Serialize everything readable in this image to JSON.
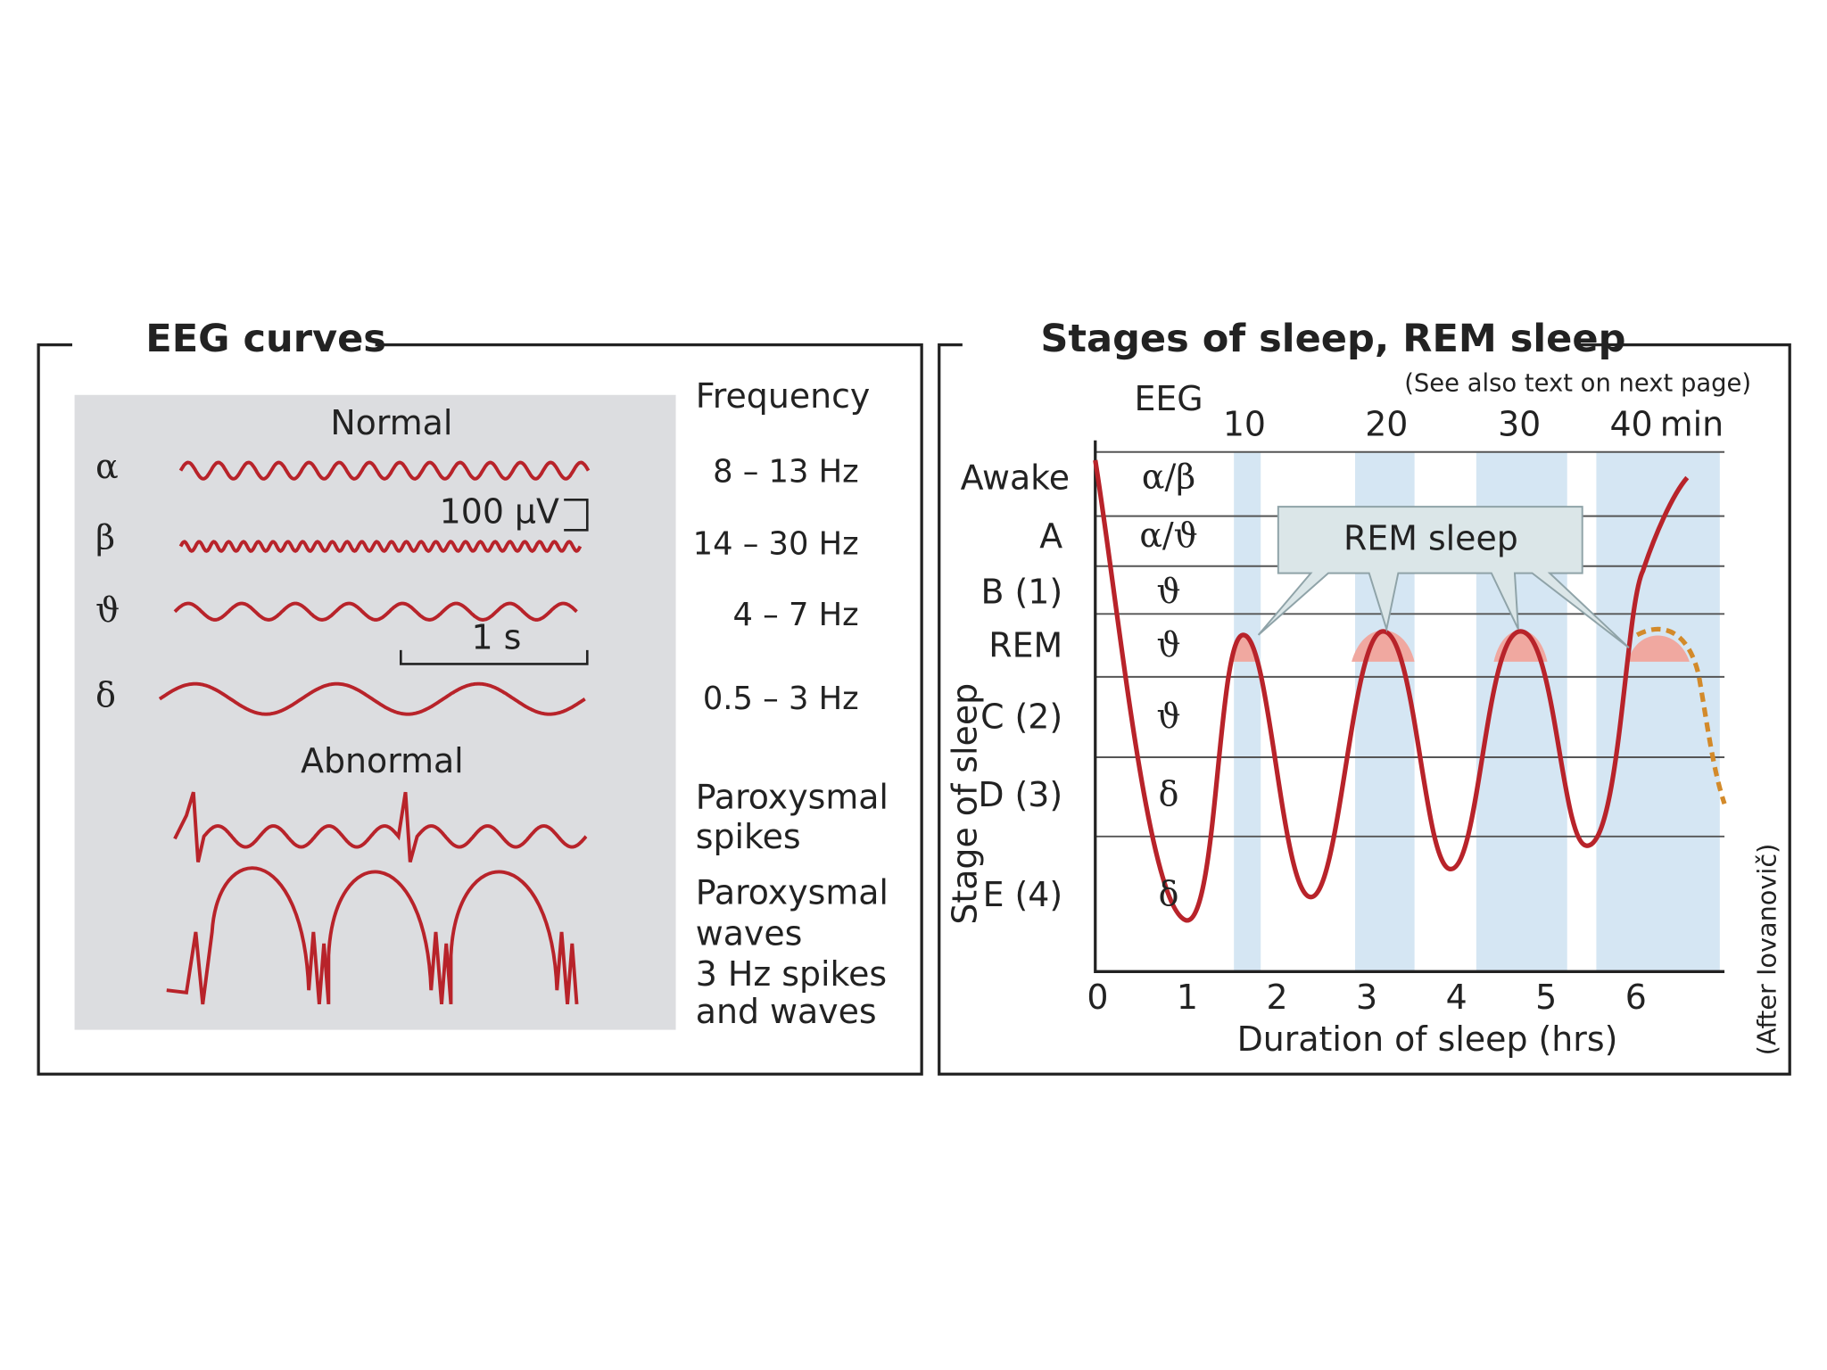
{
  "left_panel": {
    "title": "EEG curves",
    "normal_label": "Normal",
    "abnormal_label": "Abnormal",
    "frequency_header": "Frequency",
    "waves": [
      {
        "symbol": "α",
        "frequency": "8 – 13 Hz"
      },
      {
        "symbol": "β",
        "frequency": "14 – 30 Hz"
      },
      {
        "symbol": "ϑ",
        "frequency": "4 – 7 Hz"
      },
      {
        "symbol": "δ",
        "frequency": "0.5 – 3 Hz"
      }
    ],
    "amplitude_scale": "100 µV",
    "time_scale": "1 s",
    "abnormal": [
      [
        "Paroxysmal",
        "spikes"
      ],
      [
        "Paroxysmal",
        "waves",
        "3 Hz spikes",
        "and waves"
      ]
    ]
  },
  "right_panel": {
    "title": "Stages of sleep, REM sleep",
    "note": "(See also text on next page)",
    "eeg_header": "EEG",
    "minute_ticks": [
      "10",
      "20",
      "30",
      "40"
    ],
    "minute_unit": "min",
    "stages": [
      {
        "name": "Awake",
        "eeg": "α/β"
      },
      {
        "name": "A",
        "eeg": "α/ϑ"
      },
      {
        "name": "B (1)",
        "eeg": "ϑ"
      },
      {
        "name": "REM",
        "eeg": "ϑ"
      },
      {
        "name": "C (2)",
        "eeg": "ϑ"
      },
      {
        "name": "D (3)",
        "eeg": "δ"
      },
      {
        "name": "E (4)",
        "eeg": "δ"
      }
    ],
    "rem_label": "REM sleep",
    "x_ticks": [
      "0",
      "1",
      "2",
      "3",
      "4",
      "5",
      "6"
    ],
    "x_label": "Duration of sleep (hrs)",
    "y_label": "Stage of sleep",
    "credit": "(After Iovanovič)"
  }
}
